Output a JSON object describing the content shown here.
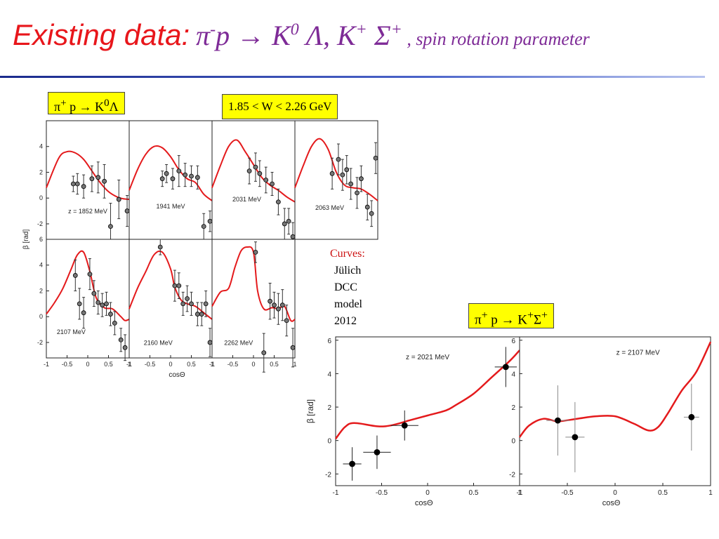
{
  "title": {
    "main": "Existing data:",
    "reaction_html": "π<sup>-</sup>p&nbsp;→ K<sup>0</sup> Λ, K<sup>+</sup> Σ<sup>+</sup>",
    "separator": " , ",
    "subtitle": "spin rotation parameter"
  },
  "labels": {
    "left_reaction_html": "π<sup>+</sup> p → K<sup>0</sup>Λ",
    "energy_range": "1.85 < W < 2.26 GeV",
    "right_reaction_html": "π<sup>+</sup> p → K<sup>+</sup>Σ<sup>+</sup>"
  },
  "curves_note": {
    "heading": "Curves:",
    "lines": [
      "Jülich",
      "DCC",
      "model",
      "2012"
    ]
  },
  "colors": {
    "title": "#e8161b",
    "reaction": "#7e2b97",
    "curve": "#e41a1c",
    "box": "#ffff00"
  },
  "chart_data": [
    {
      "type": "scatter",
      "title": "π+ p → K0Λ",
      "xlabel": "cosΘ",
      "ylabel": "β [rad]",
      "xlim": [
        -1,
        1
      ],
      "ylim": [
        -3.2,
        6
      ],
      "xticks": [
        "-1",
        "-0.5",
        "0",
        "0.5",
        "1"
      ],
      "yticks": [
        "-2",
        "0",
        "2",
        "4"
      ],
      "panels": [
        {
          "label": "z = 1852 MeV",
          "points": [
            [
              -0.35,
              1.1,
              0.6
            ],
            [
              -0.25,
              1.1,
              0.8
            ],
            [
              -0.1,
              0.9,
              0.9
            ],
            [
              0.1,
              1.5,
              1.0
            ],
            [
              0.25,
              1.6,
              1.2
            ],
            [
              0.4,
              1.3,
              1.3
            ],
            [
              0.55,
              -2.2,
              1.8
            ],
            [
              0.75,
              -0.1,
              1.5
            ],
            [
              0.95,
              -1.0,
              1.2
            ]
          ],
          "curve": [
            [
              -1,
              0.8
            ],
            [
              -0.7,
              3.1
            ],
            [
              -0.5,
              3.6
            ],
            [
              -0.3,
              3.5
            ],
            [
              -0.1,
              3.0
            ],
            [
              0.1,
              2.1
            ],
            [
              0.3,
              1.2
            ],
            [
              0.5,
              0.5
            ],
            [
              0.7,
              0.1
            ],
            [
              0.85,
              -0.05
            ],
            [
              1,
              -0.1
            ]
          ]
        },
        {
          "label": "1941 MeV",
          "points": [
            [
              -0.2,
              1.5,
              0.6
            ],
            [
              -0.1,
              1.9,
              0.7
            ],
            [
              0.05,
              1.5,
              0.8
            ],
            [
              0.2,
              2.1,
              1.2
            ],
            [
              0.35,
              1.8,
              0.9
            ],
            [
              0.5,
              1.7,
              0.8
            ],
            [
              0.65,
              1.6,
              0.9
            ],
            [
              0.8,
              -2.2,
              1.0
            ],
            [
              0.95,
              -1.8,
              0.8
            ]
          ],
          "curve": [
            [
              -1,
              0.6
            ],
            [
              -0.8,
              2.2
            ],
            [
              -0.6,
              3.4
            ],
            [
              -0.4,
              4.0
            ],
            [
              -0.2,
              3.9
            ],
            [
              0,
              3.2
            ],
            [
              0.2,
              2.2
            ],
            [
              0.4,
              1.5
            ],
            [
              0.6,
              1.2
            ],
            [
              0.8,
              0.3
            ],
            [
              1,
              -0.2
            ]
          ]
        },
        {
          "label": "2031 MeV",
          "points": [
            [
              -0.1,
              2.1,
              1.0
            ],
            [
              0.05,
              2.4,
              1.1
            ],
            [
              0.15,
              1.9,
              1.0
            ],
            [
              0.3,
              1.4,
              1.0
            ],
            [
              0.45,
              1.1,
              0.9
            ],
            [
              0.6,
              -0.3,
              1.0
            ],
            [
              0.75,
              -2.0,
              1.2
            ],
            [
              0.85,
              -1.8,
              1.0
            ],
            [
              0.95,
              -3.0,
              1.1
            ]
          ],
          "curve": [
            [
              -1,
              0.8
            ],
            [
              -0.8,
              2.5
            ],
            [
              -0.6,
              4.0
            ],
            [
              -0.4,
              4.5
            ],
            [
              -0.2,
              3.6
            ],
            [
              0,
              2.6
            ],
            [
              0.2,
              1.6
            ],
            [
              0.4,
              1.0
            ],
            [
              0.6,
              0.6
            ],
            [
              0.8,
              0.1
            ],
            [
              1,
              -0.3
            ]
          ]
        },
        {
          "label": "2063 MeV",
          "points": [
            [
              -0.1,
              1.9,
              1.2
            ],
            [
              0.05,
              3.0,
              1.2
            ],
            [
              0.15,
              1.8,
              1.2
            ],
            [
              0.25,
              2.2,
              1.1
            ],
            [
              0.35,
              1.1,
              1.2
            ],
            [
              0.5,
              0.4,
              1.2
            ],
            [
              0.6,
              1.5,
              1.0
            ],
            [
              0.75,
              -0.7,
              1.0
            ],
            [
              0.85,
              -1.2,
              1.0
            ],
            [
              0.95,
              3.1,
              1.2
            ]
          ],
          "curve": [
            [
              -1,
              0.8
            ],
            [
              -0.8,
              2.5
            ],
            [
              -0.6,
              4.0
            ],
            [
              -0.4,
              4.6
            ],
            [
              -0.2,
              3.8
            ],
            [
              0,
              2.0
            ],
            [
              0.2,
              1.0
            ],
            [
              0.4,
              0.8
            ],
            [
              0.6,
              0.7
            ],
            [
              0.8,
              0.3
            ],
            [
              1,
              -0.2
            ]
          ]
        },
        {
          "label": "2107 MeV",
          "points": [
            [
              -0.3,
              3.2,
              1.2
            ],
            [
              -0.2,
              1.0,
              1.2
            ],
            [
              -0.1,
              0.3,
              1.2
            ],
            [
              0.05,
              3.3,
              1.2
            ],
            [
              0.15,
              1.8,
              1.0
            ],
            [
              0.25,
              1.1,
              0.9
            ],
            [
              0.35,
              0.9,
              0.9
            ],
            [
              0.45,
              1.0,
              0.9
            ],
            [
              0.55,
              0.2,
              0.9
            ],
            [
              0.65,
              -0.5,
              0.9
            ],
            [
              0.8,
              -1.8,
              0.9
            ],
            [
              0.9,
              -2.4,
              1.0
            ]
          ],
          "curve": [
            [
              -1,
              0.2
            ],
            [
              -0.8,
              1.1
            ],
            [
              -0.6,
              2.2
            ],
            [
              -0.4,
              3.7
            ],
            [
              -0.25,
              4.8
            ],
            [
              -0.1,
              5.0
            ],
            [
              0.05,
              3.5
            ],
            [
              0.2,
              1.5
            ],
            [
              0.4,
              0.7
            ],
            [
              0.6,
              0.6
            ],
            [
              0.8,
              0
            ],
            [
              0.9,
              -0.3
            ],
            [
              1,
              -0.2
            ]
          ]
        },
        {
          "label": "2160 MeV",
          "points": [
            [
              -0.25,
              5.4,
              0.6
            ],
            [
              0.1,
              2.4,
              1.2
            ],
            [
              0.2,
              2.4,
              1.0
            ],
            [
              0.3,
              1.0,
              0.9
            ],
            [
              0.4,
              1.4,
              1.0
            ],
            [
              0.5,
              1.0,
              0.9
            ],
            [
              0.65,
              0.2,
              0.9
            ],
            [
              0.75,
              0.2,
              0.9
            ],
            [
              0.85,
              1.0,
              1.0
            ],
            [
              0.95,
              -2.0,
              1.1
            ]
          ],
          "curve": [
            [
              -1,
              0.6
            ],
            [
              -0.8,
              2.2
            ],
            [
              -0.6,
              3.5
            ],
            [
              -0.4,
              4.8
            ],
            [
              -0.2,
              5.0
            ],
            [
              0,
              3.7
            ],
            [
              0.1,
              2.3
            ],
            [
              0.25,
              1.3
            ],
            [
              0.4,
              1.0
            ],
            [
              0.6,
              0.8
            ],
            [
              0.8,
              0.3
            ],
            [
              1,
              -0.2
            ]
          ]
        },
        {
          "label": "2262 MeV",
          "points": [
            [
              0.05,
              5.0,
              0.8
            ],
            [
              0.25,
              -2.8,
              1.5
            ],
            [
              0.4,
              1.2,
              1.4
            ],
            [
              0.5,
              0.9,
              1.0
            ],
            [
              0.6,
              0.6,
              1.2
            ],
            [
              0.7,
              0.9,
              1.2
            ],
            [
              0.8,
              -0.3,
              1.2
            ],
            [
              0.95,
              -2.4,
              1.5
            ]
          ],
          "curve": [
            [
              -1,
              0.8
            ],
            [
              -0.8,
              1.9
            ],
            [
              -0.6,
              2.2
            ],
            [
              -0.45,
              3.8
            ],
            [
              -0.3,
              5.1
            ],
            [
              -0.15,
              5.4
            ],
            [
              0,
              5.0
            ],
            [
              0.1,
              2.0
            ],
            [
              0.25,
              0.6
            ],
            [
              0.45,
              0.7
            ],
            [
              0.6,
              0.6
            ],
            [
              0.75,
              0.8
            ],
            [
              0.9,
              -0.3
            ],
            [
              1,
              -0.2
            ]
          ]
        }
      ]
    },
    {
      "type": "scatter",
      "title": "π+ p → K+Σ+",
      "xlabel": "cosΘ",
      "ylabel": "β [rad]",
      "xlim": [
        -1,
        1
      ],
      "ylim": [
        -2.7,
        6.2
      ],
      "xticks": [
        "-1",
        "-0.5",
        "0",
        "0.5",
        "1"
      ],
      "yticks": [
        "-2",
        "0",
        "2",
        "4",
        "6"
      ],
      "panels": [
        {
          "label": "z = 2021 MeV",
          "points": [
            [
              -0.82,
              -1.4,
              1.0,
              0.1
            ],
            [
              -0.55,
              -0.7,
              1.0,
              0.15
            ],
            [
              -0.25,
              0.9,
              0.9,
              0.15
            ],
            [
              0.85,
              4.4,
              1.2,
              0.12
            ]
          ],
          "curve": [
            [
              -1,
              0.1
            ],
            [
              -0.9,
              0.8
            ],
            [
              -0.8,
              1.05
            ],
            [
              -0.55,
              0.85
            ],
            [
              -0.4,
              0.9
            ],
            [
              -0.2,
              1.2
            ],
            [
              0,
              1.5
            ],
            [
              0.2,
              1.8
            ],
            [
              0.3,
              2.1
            ],
            [
              0.5,
              2.8
            ],
            [
              0.7,
              3.8
            ],
            [
              0.9,
              4.8
            ],
            [
              1,
              5.4
            ]
          ]
        },
        {
          "label": "z = 2107 MeV",
          "points": [
            [
              -0.6,
              1.2,
              2.1,
              0.12
            ],
            [
              -0.42,
              0.2,
              2.1,
              0.1
            ],
            [
              0.8,
              1.4,
              2.0,
              0.08
            ]
          ],
          "curve": [
            [
              -1,
              0.2
            ],
            [
              -0.9,
              0.9
            ],
            [
              -0.75,
              1.3
            ],
            [
              -0.6,
              1.15
            ],
            [
              -0.4,
              1.3
            ],
            [
              -0.2,
              1.45
            ],
            [
              0,
              1.45
            ],
            [
              0.2,
              1.0
            ],
            [
              0.35,
              0.6
            ],
            [
              0.45,
              0.8
            ],
            [
              0.55,
              1.6
            ],
            [
              0.7,
              3.0
            ],
            [
              0.85,
              4.1
            ],
            [
              1,
              5.9
            ]
          ]
        }
      ]
    }
  ]
}
